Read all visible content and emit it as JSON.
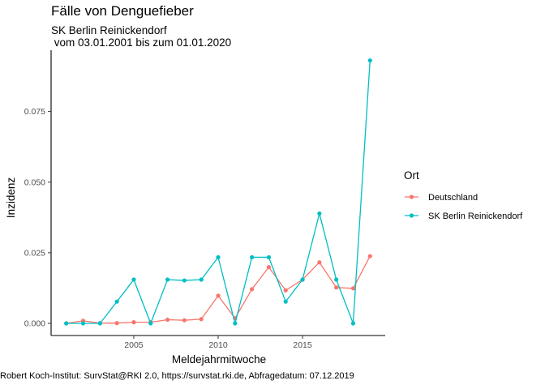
{
  "chart_data": {
    "type": "line",
    "title": "Fälle von Denguefieber",
    "subtitle": "SK Berlin Reinickendorf\n vom 03.01.2001 bis zum 01.01.2020",
    "xlabel": "Meldejahrmitwoche",
    "ylabel": "Inzidenz",
    "caption": "Robert Koch-Institut: SurvStat@RKI 2.0, https://survstat.rki.de, Abfragedatum: 07.12.2019",
    "legend_title": "Ort",
    "legend_position": "right",
    "grid": false,
    "xlim": [
      2000.1,
      2019.9
    ],
    "ylim": [
      -0.0043,
      0.0967
    ],
    "x_ticks": [
      2005,
      2010,
      2015
    ],
    "x_tick_labels": [
      "2005",
      "2010",
      "2015"
    ],
    "y_ticks": [
      0.0,
      0.025,
      0.05,
      0.075
    ],
    "y_tick_labels": [
      "0.000",
      "0.025",
      "0.050",
      "0.075"
    ],
    "x": [
      2001,
      2002,
      2003,
      2004,
      2005,
      2006,
      2007,
      2008,
      2009,
      2010,
      2011,
      2012,
      2013,
      2014,
      2015,
      2016,
      2017,
      2018,
      2019
    ],
    "series": [
      {
        "name": "Deutschland",
        "color": "#F8766D",
        "values": [
          0.0,
          0.0009,
          0.0001,
          0.0001,
          0.0004,
          0.0004,
          0.0013,
          0.0011,
          0.0015,
          0.0098,
          0.0018,
          0.0121,
          0.0199,
          0.0117,
          0.0155,
          0.0216,
          0.0127,
          0.0124,
          0.0238
        ]
      },
      {
        "name": "SK Berlin Reinickendorf",
        "color": "#00BFC4",
        "values": [
          0.0,
          0.0,
          0.0,
          0.0077,
          0.0155,
          0.0,
          0.0155,
          0.0152,
          0.0155,
          0.0234,
          0.0,
          0.0234,
          0.0234,
          0.0077,
          0.0155,
          0.0389,
          0.0155,
          0.0,
          0.0931
        ]
      }
    ]
  }
}
